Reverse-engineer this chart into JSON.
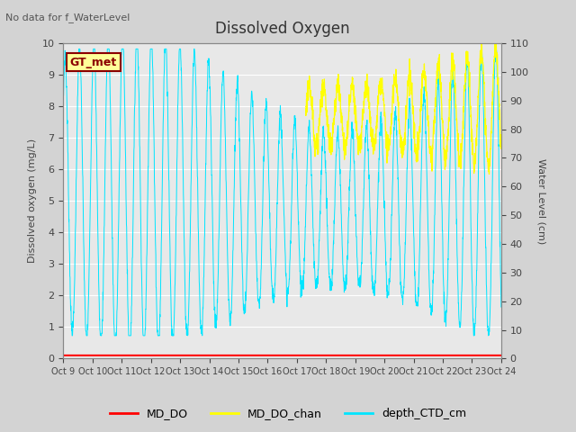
{
  "title": "Dissolved Oxygen",
  "top_left_text": "No data for f_WaterLevel",
  "ylabel_left": "Dissolved oxygen (mg/L)",
  "ylabel_right": "Water Level (cm)",
  "ylim_left": [
    0,
    10.0
  ],
  "ylim_right": [
    0,
    110
  ],
  "yticks_left": [
    0.0,
    1.0,
    2.0,
    3.0,
    4.0,
    5.0,
    6.0,
    7.0,
    8.0,
    9.0,
    10.0
  ],
  "yticks_right": [
    0,
    10,
    20,
    30,
    40,
    50,
    60,
    70,
    80,
    90,
    100,
    110
  ],
  "xtick_labels": [
    "Oct 9",
    "Oct 10",
    "Oct 11",
    "Oct 12",
    "Oct 13",
    "Oct 14",
    "Oct 15",
    "Oct 16",
    "Oct 17",
    "Oct 18",
    "Oct 19",
    "Oct 20",
    "Oct 21",
    "Oct 22",
    "Oct 23",
    "Oct 24"
  ],
  "legend_labels": [
    "MD_DO",
    "MD_DO_chan",
    "depth_CTD_cm"
  ],
  "legend_colors": [
    "#ff0000",
    "#ffff00",
    "#00e5ff"
  ],
  "annotation_text": "GT_met",
  "annotation_bg": "#ffff99",
  "annotation_edge": "#8B0000",
  "annotation_text_color": "#8B0000",
  "bg_color": "#d3d3d3",
  "plot_bg_color": "#e8e8e8",
  "line_color_red": "#ff0000",
  "line_color_yellow": "#ffff00",
  "line_color_cyan": "#00e5ff",
  "grid_color": "#ffffff"
}
